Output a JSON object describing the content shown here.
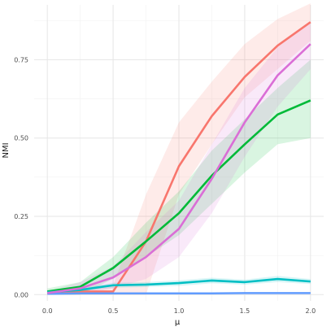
{
  "chart_data": {
    "type": "line",
    "title": "",
    "xlabel": "μ",
    "ylabel": "NMI",
    "xlim": [
      -0.1,
      2.1
    ],
    "ylim": [
      -0.02,
      0.925
    ],
    "x_ticks": [
      0.0,
      0.5,
      1.0,
      1.5,
      2.0
    ],
    "x_tick_labels": [
      "0.0",
      "0.5",
      "1.0",
      "1.5",
      "2.0"
    ],
    "y_ticks": [
      0.0,
      0.25,
      0.5,
      0.75
    ],
    "y_tick_labels": [
      "0.00",
      "0.25",
      "0.50",
      "0.75"
    ],
    "x_minor": [
      0.25,
      0.75,
      1.25,
      1.75
    ],
    "y_minor": [
      0.125,
      0.375,
      0.625,
      0.875
    ],
    "grid": true,
    "legend": "none",
    "x": [
      0.0,
      0.25,
      0.5,
      0.75,
      1.0,
      1.25,
      1.5,
      1.75,
      2.0
    ],
    "series": [
      {
        "color": "#f8766d",
        "values": [
          0.005,
          0.01,
          0.01,
          0.17,
          0.41,
          0.57,
          0.695,
          0.795,
          0.87
        ],
        "lower": [
          0.0,
          0.0,
          0.0,
          0.0,
          0.32,
          0.48,
          0.63,
          0.72,
          0.81
        ],
        "upper": [
          0.01,
          0.02,
          0.03,
          0.32,
          0.55,
          0.68,
          0.8,
          0.88,
          0.93
        ]
      },
      {
        "color": "#00ba38",
        "values": [
          0.01,
          0.025,
          0.085,
          0.17,
          0.26,
          0.38,
          0.48,
          0.575,
          0.62
        ],
        "lower": [
          0.0,
          0.0,
          0.05,
          0.12,
          0.19,
          0.29,
          0.39,
          0.48,
          0.5
        ],
        "upper": [
          0.02,
          0.04,
          0.12,
          0.23,
          0.33,
          0.46,
          0.56,
          0.66,
          0.75
        ]
      },
      {
        "color": "#00bfc4",
        "values": [
          0.008,
          0.015,
          0.03,
          0.032,
          0.037,
          0.045,
          0.04,
          0.05,
          0.042
        ],
        "lower": [
          0.004,
          0.01,
          0.022,
          0.024,
          0.028,
          0.036,
          0.032,
          0.04,
          0.034
        ],
        "upper": [
          0.012,
          0.02,
          0.038,
          0.04,
          0.046,
          0.054,
          0.048,
          0.06,
          0.05
        ]
      },
      {
        "color": "#619cff",
        "values": [
          0.003,
          0.004,
          0.004,
          0.004,
          0.004,
          0.004,
          0.005,
          0.005,
          0.005
        ],
        "lower": [
          0.001,
          0.002,
          0.002,
          0.002,
          0.002,
          0.002,
          0.003,
          0.003,
          0.003
        ],
        "upper": [
          0.005,
          0.006,
          0.006,
          0.006,
          0.006,
          0.006,
          0.007,
          0.007,
          0.007
        ]
      },
      {
        "color": "#da6ed6",
        "values": [
          0.005,
          0.02,
          0.055,
          0.12,
          0.21,
          0.37,
          0.55,
          0.7,
          0.8
        ],
        "lower": [
          0.0,
          0.0,
          0.02,
          0.05,
          0.12,
          0.26,
          0.44,
          0.6,
          0.72
        ],
        "upper": [
          0.01,
          0.04,
          0.09,
          0.2,
          0.3,
          0.48,
          0.66,
          0.79,
          0.87
        ]
      }
    ]
  }
}
